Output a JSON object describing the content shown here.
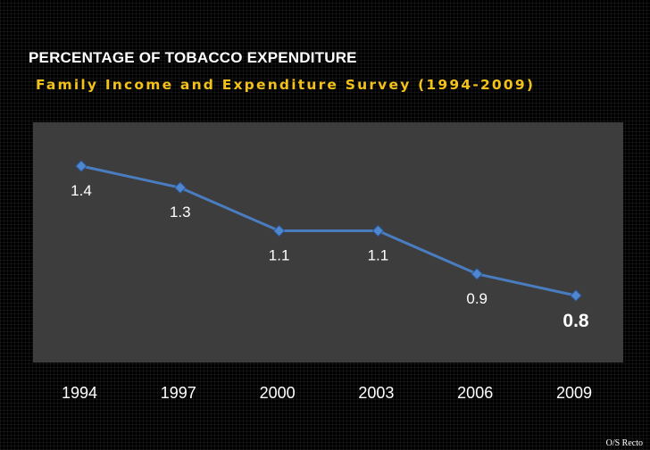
{
  "header": {
    "title": "PERCENTAGE OF TOBACCO EXPENDITURE",
    "subtitle": "Family Income and Expenditure Survey (1994-2009)"
  },
  "credit": "O/S Recto",
  "colors": {
    "line": "#4a7cc0",
    "marker": "#4f86d0",
    "plot_background": "#3d3d3d",
    "title": "#ffffff",
    "subtitle": "#f2c21a"
  },
  "chart_data": {
    "type": "line",
    "title": "PERCENTAGE OF TOBACCO EXPENDITURE",
    "subtitle": "Family Income and Expenditure Survey (1994-2009)",
    "categories": [
      "1994",
      "1997",
      "2000",
      "2003",
      "2006",
      "2009"
    ],
    "series": [
      {
        "values": [
          1.4,
          1.3,
          1.1,
          1.1,
          0.9,
          0.8
        ]
      }
    ],
    "data_labels": [
      "1.4",
      "1.3",
      "1.1",
      "1.1",
      "0.9",
      "0.8"
    ],
    "xlabel": "",
    "ylabel": "",
    "ylim": [
      0,
      1.6
    ],
    "grid": false,
    "legend": "none",
    "marker": "diamond"
  }
}
